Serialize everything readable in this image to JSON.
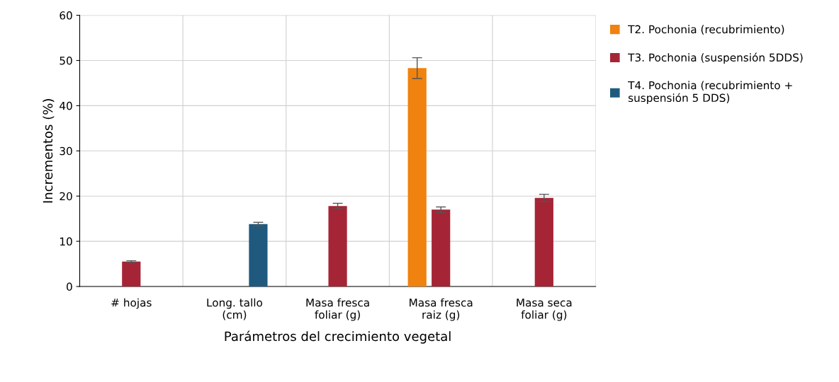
{
  "chart_data": {
    "type": "bar",
    "xlabel": "Parámetros del crecimiento vegetal",
    "ylabel": "Incrementos (%)",
    "categories": [
      "# hojas",
      "Long. tallo\n(cm)",
      "Masa fresca\nfoliar (g)",
      "Masa fresca\nraiz (g)",
      "Masa seca\nfoliar (g)"
    ],
    "series": [
      {
        "name": "T2. Pochonia (recubrimiento)",
        "color": "#f0820f",
        "values": [
          null,
          null,
          null,
          48.3,
          null
        ],
        "errors": [
          null,
          null,
          null,
          2.3,
          null
        ]
      },
      {
        "name": "T3. Pochonia (suspensión 5DDS)",
        "color": "#a52536",
        "values": [
          5.5,
          null,
          17.8,
          17.0,
          19.6
        ],
        "errors": [
          0.2,
          null,
          0.6,
          0.6,
          0.8
        ]
      },
      {
        "name": "T4. Pochonia (recubrimiento +\nsuspensión 5 DDS)",
        "color": "#1f5a7e",
        "values": [
          null,
          13.8,
          null,
          null,
          null
        ],
        "errors": [
          null,
          0.4,
          null,
          null,
          null
        ]
      }
    ],
    "ylim": [
      0,
      60
    ],
    "yticks": [
      0,
      10,
      20,
      30,
      40,
      50,
      60
    ],
    "grid": true,
    "legend": "right"
  }
}
